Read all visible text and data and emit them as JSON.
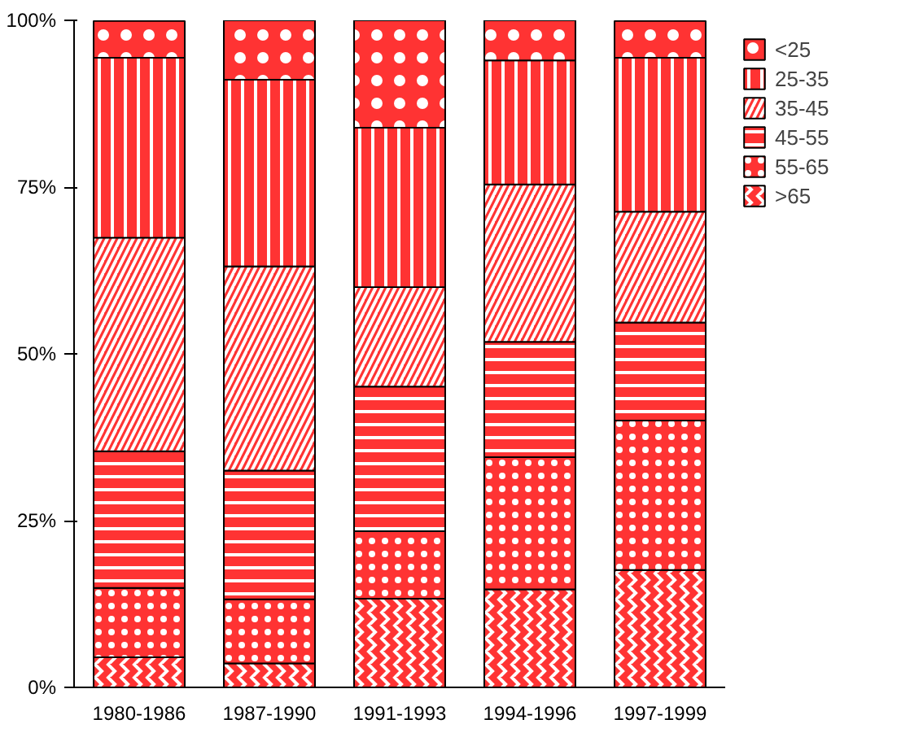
{
  "chart_data": {
    "type": "bar",
    "stacked": true,
    "categories": [
      "1980-1986",
      "1987-1990",
      "1991-1993",
      "1994-1996",
      "1997-1999"
    ],
    "series": [
      {
        "name": ">65",
        "color": "#ff3333",
        "values": [
          4.5,
          3.6,
          13.3,
          14.7,
          17.6
        ]
      },
      {
        "name": "55-65",
        "color": "#ff3333",
        "values": [
          10.4,
          9.6,
          10.1,
          19.8,
          22.4
        ]
      },
      {
        "name": "45-55",
        "color": "#ff3333",
        "values": [
          20.5,
          19.3,
          21.7,
          17.3,
          14.7
        ]
      },
      {
        "name": "35-45",
        "color": "#ff3333",
        "values": [
          32,
          30.6,
          14.9,
          23.6,
          16.6
        ]
      },
      {
        "name": "25-35",
        "color": "#ff3333",
        "values": [
          27,
          28,
          23.9,
          18.6,
          23.1
        ]
      },
      {
        "name": "<25",
        "color": "#ff3333",
        "values": [
          5.5,
          8.9,
          16.1,
          6,
          5.5
        ]
      }
    ],
    "ylim": [
      0,
      100
    ],
    "yticks": [
      {
        "value": 0,
        "label": "0%"
      },
      {
        "value": 25,
        "label": "25%"
      },
      {
        "value": 50,
        "label": "50%"
      },
      {
        "value": 75,
        "label": "75%"
      },
      {
        "value": 100,
        "label": "100%"
      }
    ],
    "grid": false,
    "legend": "right"
  }
}
